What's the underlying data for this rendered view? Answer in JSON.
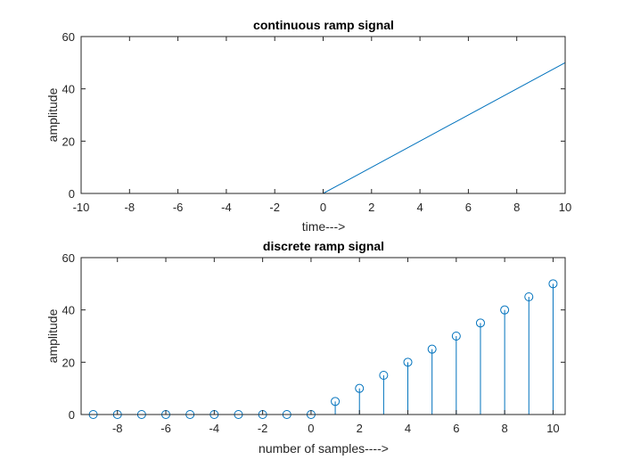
{
  "chart_data": [
    {
      "type": "line",
      "title": "continuous ramp signal",
      "xlabel": "time--->",
      "ylabel": "amplitude",
      "xlim": [
        -10,
        10
      ],
      "ylim": [
        0,
        60
      ],
      "xticks": [
        -10,
        -8,
        -6,
        -4,
        -2,
        0,
        2,
        4,
        6,
        8,
        10
      ],
      "yticks": [
        0,
        20,
        40,
        60
      ],
      "xtick_labels": [
        "-10",
        "-8",
        "-6",
        "-4",
        "-2",
        "0",
        "2",
        "4",
        "6",
        "8",
        "10"
      ],
      "ytick_labels": [
        "0",
        "20",
        "40",
        "60"
      ],
      "grid": false,
      "series": [
        {
          "color": "#0072BD",
          "x": [
            -9,
            0,
            10
          ],
          "y": [
            0,
            0,
            50
          ]
        }
      ]
    },
    {
      "type": "stem",
      "title": "discrete ramp signal",
      "xlabel": "number of samples---->",
      "ylabel": "amplitude",
      "xlim": [
        -9.5,
        10.5
      ],
      "ylim": [
        0,
        60
      ],
      "xticks": [
        -8,
        -6,
        -4,
        -2,
        0,
        2,
        4,
        6,
        8,
        10
      ],
      "yticks": [
        0,
        20,
        40,
        60
      ],
      "xtick_labels": [
        "-8",
        "-6",
        "-4",
        "-2",
        "0",
        "2",
        "4",
        "6",
        "8",
        "10"
      ],
      "ytick_labels": [
        "0",
        "20",
        "40",
        "60"
      ],
      "grid": false,
      "series": [
        {
          "color": "#0072BD",
          "marker": "circle",
          "x": [
            -9,
            -8,
            -7,
            -6,
            -5,
            -4,
            -3,
            -2,
            -1,
            0,
            1,
            2,
            3,
            4,
            5,
            6,
            7,
            8,
            9,
            10
          ],
          "y": [
            0,
            0,
            0,
            0,
            0,
            0,
            0,
            0,
            0,
            0,
            5,
            10,
            15,
            20,
            25,
            30,
            35,
            40,
            45,
            50
          ]
        }
      ]
    }
  ]
}
